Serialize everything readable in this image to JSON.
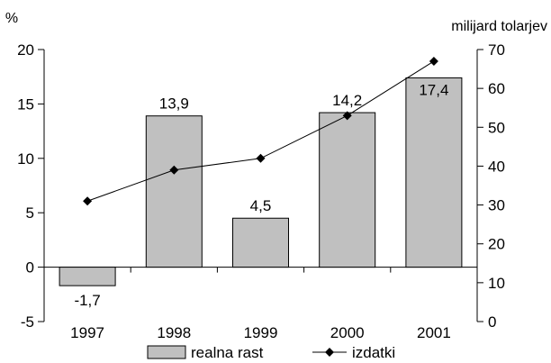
{
  "chart_data": {
    "type": "bar",
    "categories": [
      "1997",
      "1998",
      "1999",
      "2000",
      "2001"
    ],
    "series": [
      {
        "name": "realna rast",
        "type": "bar",
        "axis": "left",
        "values": [
          -1.7,
          13.9,
          4.5,
          14.2,
          17.4
        ],
        "labels": [
          "-1,7",
          "13,9",
          "4,5",
          "14,2",
          "17,4"
        ],
        "color": "#c0c0c0"
      },
      {
        "name": "izdatki",
        "type": "line",
        "axis": "right",
        "values": [
          31,
          39,
          42,
          53,
          67
        ],
        "color": "#000000",
        "marker": "diamond"
      }
    ],
    "y_left": {
      "unit": "%",
      "ylim": [
        -5,
        20
      ],
      "ticks": [
        -5,
        0,
        5,
        10,
        15,
        20
      ]
    },
    "y_right": {
      "unit": "milijard tolarjev",
      "ylim": [
        0,
        70
      ],
      "ticks": [
        0,
        10,
        20,
        30,
        40,
        50,
        60,
        70
      ]
    },
    "legend": {
      "position": "bottom",
      "items": [
        "realna rast",
        "izdatki"
      ]
    },
    "grid": false
  }
}
